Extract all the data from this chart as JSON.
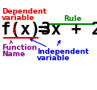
{
  "bg_color": "#ffffff",
  "eq_color": "#000000",
  "dependent_color": "#dd0000",
  "rule_color": "#008800",
  "function_name_color": "#880088",
  "independent_color": "#0000cc",
  "dependent_label": [
    "Dependent",
    "variable"
  ],
  "rule_label": "Rule",
  "function_name_label": [
    "Function",
    "Name"
  ],
  "independent_label": [
    "Independent",
    "variable"
  ],
  "figsize": [
    1.21,
    1.13
  ],
  "dpi": 100
}
